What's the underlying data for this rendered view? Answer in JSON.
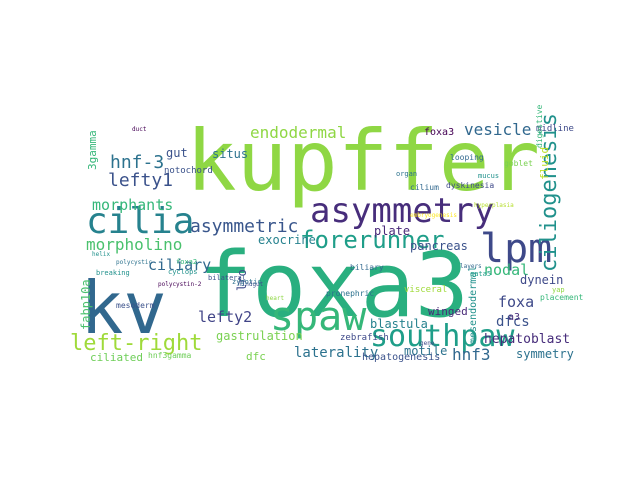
{
  "background": "#ffffff",
  "words": [
    {
      "text": "kupffer",
      "color": "#8fd744"
    },
    {
      "text": "foxa3",
      "color": "#29af7f"
    },
    {
      "text": "kv",
      "color": "#31688e"
    },
    {
      "text": "cilia",
      "color": "#26828e"
    },
    {
      "text": "asymmetry",
      "color": "#472d7b"
    },
    {
      "text": "spaw",
      "color": "#35b779"
    },
    {
      "text": "lpm",
      "color": "#3e4989"
    },
    {
      "text": "southpaw",
      "color": "#1f9e89"
    },
    {
      "text": "left-right",
      "color": "#9fda3a"
    },
    {
      "text": "forerunner",
      "color": "#1f9e89"
    },
    {
      "text": "asymmetric",
      "color": "#39568c"
    },
    {
      "text": "ciliogenesis",
      "color": "#21918c"
    },
    {
      "text": "hnf-3",
      "color": "#2c728e"
    },
    {
      "text": "lefty1",
      "color": "#3b528b"
    },
    {
      "text": "endodermal",
      "color": "#8fd744"
    },
    {
      "text": "vesicle",
      "color": "#31688e"
    },
    {
      "text": "morphants",
      "color": "#35b779"
    },
    {
      "text": "morpholino",
      "color": "#4ac16d"
    },
    {
      "text": "ciliary",
      "color": "#31688e"
    },
    {
      "text": "nodal",
      "color": "#35b779"
    },
    {
      "text": "foxa",
      "color": "#3e4989"
    },
    {
      "text": "dfcs",
      "color": "#3b528b"
    },
    {
      "text": "lefty2",
      "color": "#414487"
    },
    {
      "text": "laterality",
      "color": "#2c728e"
    },
    {
      "text": "hnf3",
      "color": "#31688e"
    },
    {
      "text": "hepatoblast",
      "color": "#472d7b"
    },
    {
      "text": "pancreas",
      "color": "#3b528b"
    },
    {
      "text": "gastrulation",
      "color": "#7ad151"
    },
    {
      "text": "blastula",
      "color": "#26828e"
    },
    {
      "text": "dynein",
      "color": "#3e4989"
    },
    {
      "text": "exocrine",
      "color": "#26828e"
    },
    {
      "text": "plate",
      "color": "#482878"
    },
    {
      "text": "motile",
      "color": "#2c728e"
    },
    {
      "text": "symmetry",
      "color": "#2c728e"
    },
    {
      "text": "3gamma",
      "color": "#35b779"
    },
    {
      "text": "gut",
      "color": "#3b528b"
    },
    {
      "text": "situs",
      "color": "#2c728e"
    },
    {
      "text": "fabp10a",
      "color": "#4ac16d"
    },
    {
      "text": "ciliated",
      "color": "#6ece58"
    },
    {
      "text": "dfc",
      "color": "#7ad151"
    },
    {
      "text": "lro",
      "color": "#3e4989"
    },
    {
      "text": "mesendodermal",
      "color": "#21918c"
    },
    {
      "text": "a3",
      "color": "#472d7b"
    },
    {
      "text": "winged",
      "color": "#482878"
    },
    {
      "text": "foxa3",
      "color": "#440154"
    },
    {
      "text": "midline",
      "color": "#3e4989"
    },
    {
      "text": "notochord",
      "color": "#3b528b"
    },
    {
      "text": "hnf3gamma",
      "color": "#6ece58"
    },
    {
      "text": "hepatogenesis",
      "color": "#3b528b"
    },
    {
      "text": "zebrafish",
      "color": "#3e4989"
    },
    {
      "text": "fluid",
      "color": "#bddf26"
    },
    {
      "text": "cilium",
      "color": "#31688e"
    },
    {
      "text": "goblet",
      "color": "#7ad151"
    },
    {
      "text": "digestive",
      "color": "#35b779"
    },
    {
      "text": "placement",
      "color": "#35b779"
    },
    {
      "text": "yap",
      "color": "#8fd744"
    },
    {
      "text": "biliary",
      "color": "#31688e"
    },
    {
      "text": "pronephric",
      "color": "#2c728e"
    },
    {
      "text": "mesoderm",
      "color": "#3b528b"
    },
    {
      "text": "visceral",
      "color": "#a0da39"
    },
    {
      "text": "dyskinesia",
      "color": "#3e4989"
    },
    {
      "text": "looping",
      "color": "#31688e"
    },
    {
      "text": "mucus",
      "color": "#21918c"
    },
    {
      "text": "breaking",
      "color": "#21918c"
    },
    {
      "text": "foxa2",
      "color": "#35b779"
    },
    {
      "text": "helix",
      "color": "#21918c"
    },
    {
      "text": "polycystic",
      "color": "#2c728e"
    },
    {
      "text": "zygotic",
      "color": "#2c728e"
    },
    {
      "text": "bilateral",
      "color": "#3b528b"
    },
    {
      "text": "cyclops",
      "color": "#21918c"
    },
    {
      "text": "polycystin-2",
      "color": "#440154"
    },
    {
      "text": "organ",
      "color": "#2c728e"
    },
    {
      "text": "embryogenesis",
      "color": "#fde725"
    },
    {
      "text": "layers",
      "color": "#31688e"
    },
    {
      "text": "hyperplasia",
      "color": "#b5de2b"
    },
    {
      "text": "gata5",
      "color": "#1f9e89"
    },
    {
      "text": "gene",
      "color": "#3e4989"
    },
    {
      "text": "heart",
      "color": "#8fd744"
    },
    {
      "text": "duct",
      "color": "#440154"
    },
    {
      "text": "hindgut",
      "color": "#3b528b"
    }
  ]
}
